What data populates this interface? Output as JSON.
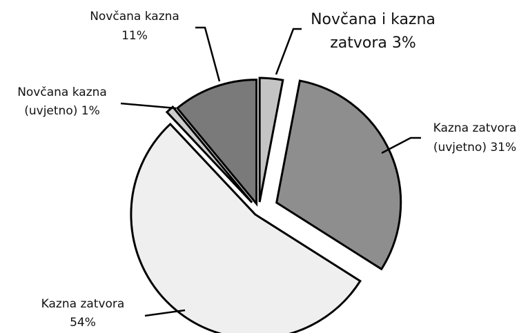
{
  "chart_data": {
    "type": "pie",
    "categories": [
      "Novčana i kazna zatvora",
      "Kazna zatvora (uvjetno)",
      "Kazna zatvora",
      "Novčana kazna (uvjetno)",
      "Novčana kazna"
    ],
    "values": [
      3,
      31,
      54,
      1,
      11
    ],
    "value_labels": [
      "3%",
      "31%",
      "54%",
      "1%",
      "11%"
    ],
    "colors": [
      "#c4c4c4",
      "#8e8e8e",
      "#efefef",
      "#cdcdcd",
      "#7a7a7a"
    ]
  }
}
